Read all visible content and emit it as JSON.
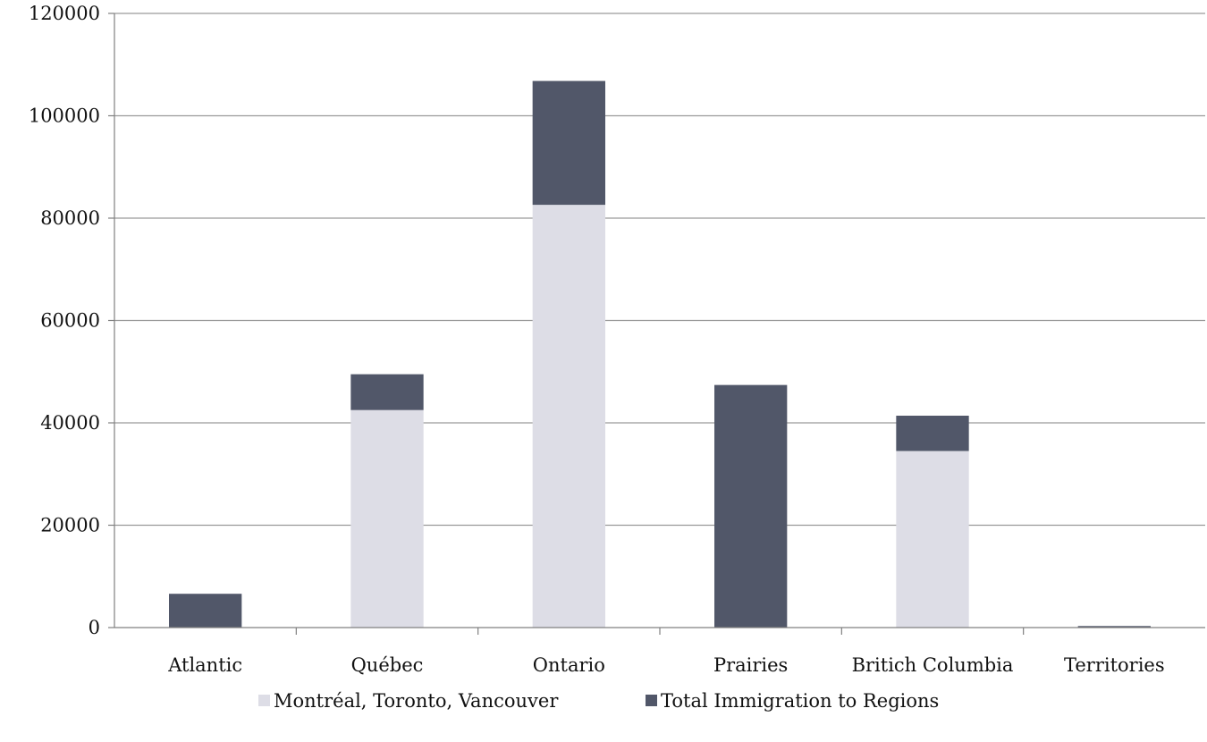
{
  "chart_data": {
    "type": "bar",
    "stacked": true,
    "categories": [
      "Atlantic",
      "Québec",
      "Ontario",
      "Prairies",
      "Britich Columbia",
      "Territories"
    ],
    "series": [
      {
        "name": "Montréal, Toronto, Vancouver",
        "values": [
          0,
          42500,
          82600,
          0,
          34500,
          0
        ],
        "color": "#dddde6"
      },
      {
        "name": "Total Immigration to Regions",
        "values": [
          6600,
          7000,
          24200,
          47400,
          6900,
          300
        ],
        "color": "#515769"
      }
    ],
    "y_ticks": [
      "0",
      "20000",
      "40000",
      "60000",
      "80000",
      "100000",
      "120000"
    ],
    "ylim": [
      0,
      120000
    ],
    "grid": true,
    "legend_position": "bottom-center",
    "title": "",
    "xlabel": "",
    "ylabel": ""
  }
}
